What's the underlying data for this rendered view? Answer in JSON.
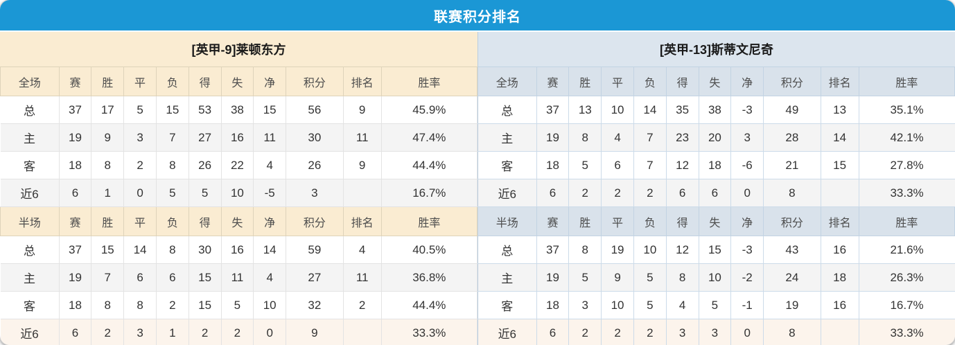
{
  "title": "联赛积分排名",
  "colors": {
    "header_bar": "#1b97d5",
    "home_header_bg": "#faecd2",
    "away_header_bg": "#dce5ee",
    "points_red": "#f2482b",
    "rank_blue": "#3a7ccd",
    "home_label_red": "#e04848",
    "away_label_blue": "#7272e4",
    "stripe_gray": "#f4f4f4",
    "last_row_warm": "#fcf4ec"
  },
  "columns": [
    "赛",
    "胜",
    "平",
    "负",
    "得",
    "失",
    "净",
    "积分",
    "排名",
    "胜率"
  ],
  "tables": [
    {
      "team_title": "[英甲-9]莱顿东方",
      "sections": [
        {
          "label": "全场",
          "rows": [
            {
              "label": "总",
              "stats": [
                "37",
                "17",
                "5",
                "15",
                "53",
                "38",
                "15"
              ],
              "points": "56",
              "rank": "9",
              "rate": "45.9%"
            },
            {
              "label": "主",
              "stats": [
                "19",
                "9",
                "3",
                "7",
                "27",
                "16",
                "11"
              ],
              "points": "30",
              "rank": "11",
              "rate": "47.4%"
            },
            {
              "label": "客",
              "stats": [
                "18",
                "8",
                "2",
                "8",
                "26",
                "22",
                "4"
              ],
              "points": "26",
              "rank": "9",
              "rate": "44.4%"
            },
            {
              "label": "近6",
              "stats": [
                "6",
                "1",
                "0",
                "5",
                "5",
                "10",
                "-5"
              ],
              "points": "3",
              "rank": "",
              "rate": "16.7%"
            }
          ]
        },
        {
          "label": "半场",
          "rows": [
            {
              "label": "总",
              "stats": [
                "37",
                "15",
                "14",
                "8",
                "30",
                "16",
                "14"
              ],
              "points": "59",
              "rank": "4",
              "rate": "40.5%"
            },
            {
              "label": "主",
              "stats": [
                "19",
                "7",
                "6",
                "6",
                "15",
                "11",
                "4"
              ],
              "points": "27",
              "rank": "11",
              "rate": "36.8%"
            },
            {
              "label": "客",
              "stats": [
                "18",
                "8",
                "8",
                "2",
                "15",
                "5",
                "10"
              ],
              "points": "32",
              "rank": "2",
              "rate": "44.4%"
            },
            {
              "label": "近6",
              "stats": [
                "6",
                "2",
                "3",
                "1",
                "2",
                "2",
                "0"
              ],
              "points": "9",
              "rank": "",
              "rate": "33.3%"
            }
          ]
        }
      ]
    },
    {
      "team_title": "[英甲-13]斯蒂文尼奇",
      "sections": [
        {
          "label": "全场",
          "rows": [
            {
              "label": "总",
              "stats": [
                "37",
                "13",
                "10",
                "14",
                "35",
                "38",
                "-3"
              ],
              "points": "49",
              "rank": "13",
              "rate": "35.1%"
            },
            {
              "label": "主",
              "stats": [
                "19",
                "8",
                "4",
                "7",
                "23",
                "20",
                "3"
              ],
              "points": "28",
              "rank": "14",
              "rate": "42.1%"
            },
            {
              "label": "客",
              "stats": [
                "18",
                "5",
                "6",
                "7",
                "12",
                "18",
                "-6"
              ],
              "points": "21",
              "rank": "15",
              "rate": "27.8%"
            },
            {
              "label": "近6",
              "stats": [
                "6",
                "2",
                "2",
                "2",
                "6",
                "6",
                "0"
              ],
              "points": "8",
              "rank": "",
              "rate": "33.3%"
            }
          ]
        },
        {
          "label": "半场",
          "rows": [
            {
              "label": "总",
              "stats": [
                "37",
                "8",
                "19",
                "10",
                "12",
                "15",
                "-3"
              ],
              "points": "43",
              "rank": "16",
              "rate": "21.6%"
            },
            {
              "label": "主",
              "stats": [
                "19",
                "5",
                "9",
                "5",
                "8",
                "10",
                "-2"
              ],
              "points": "24",
              "rank": "18",
              "rate": "26.3%"
            },
            {
              "label": "客",
              "stats": [
                "18",
                "3",
                "10",
                "5",
                "4",
                "5",
                "-1"
              ],
              "points": "19",
              "rank": "16",
              "rate": "16.7%"
            },
            {
              "label": "近6",
              "stats": [
                "6",
                "2",
                "2",
                "2",
                "3",
                "3",
                "0"
              ],
              "points": "8",
              "rank": "",
              "rate": "33.3%"
            }
          ]
        }
      ]
    }
  ]
}
